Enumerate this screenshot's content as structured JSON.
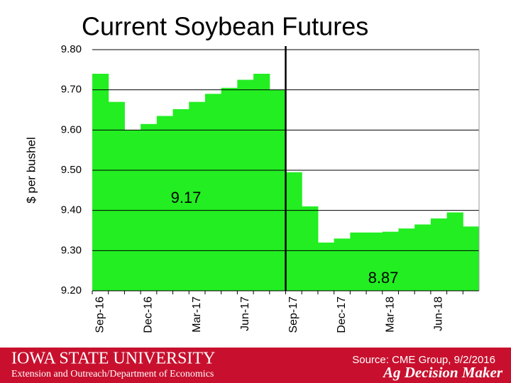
{
  "chart_data": {
    "type": "bar",
    "title": "Current Soybean Futures",
    "y_label": "$ per bushel",
    "categories": [
      "Sep-16",
      null,
      null,
      "Dec-16",
      null,
      null,
      "Mar-17",
      null,
      null,
      "Jun-17",
      null,
      null,
      "Sep-17",
      null,
      null,
      "Dec-17",
      null,
      null,
      "Mar-18",
      null,
      null,
      "Jun-18",
      null,
      null
    ],
    "values": [
      9.74,
      9.67,
      9.6,
      9.615,
      9.635,
      9.652,
      9.67,
      9.69,
      9.705,
      9.725,
      9.74,
      9.7,
      9.495,
      9.41,
      9.32,
      9.33,
      9.345,
      9.345,
      9.347,
      9.355,
      9.365,
      9.38,
      9.395,
      9.36
    ],
    "color": "#22ee22",
    "ylim": [
      9.2,
      9.8
    ],
    "yticks": [
      {
        "value": 9.2,
        "label": "9.20"
      },
      {
        "value": 9.3,
        "label": "9.30"
      },
      {
        "value": 9.4,
        "label": "9.40"
      },
      {
        "value": 9.5,
        "label": "9.50"
      },
      {
        "value": 9.6,
        "label": "9.60"
      },
      {
        "value": 9.7,
        "label": "9.70"
      },
      {
        "value": 9.8,
        "label": "9.80"
      }
    ],
    "grid": true,
    "annotations": [
      {
        "text": "9.17"
      },
      {
        "text": "8.87"
      }
    ]
  },
  "footer": {
    "university": "Iowa State University",
    "department": "Extension and Outreach/Department of Economics",
    "source": "Source: CME Group, 9/2/2016",
    "brand": "Ag Decision Maker"
  }
}
